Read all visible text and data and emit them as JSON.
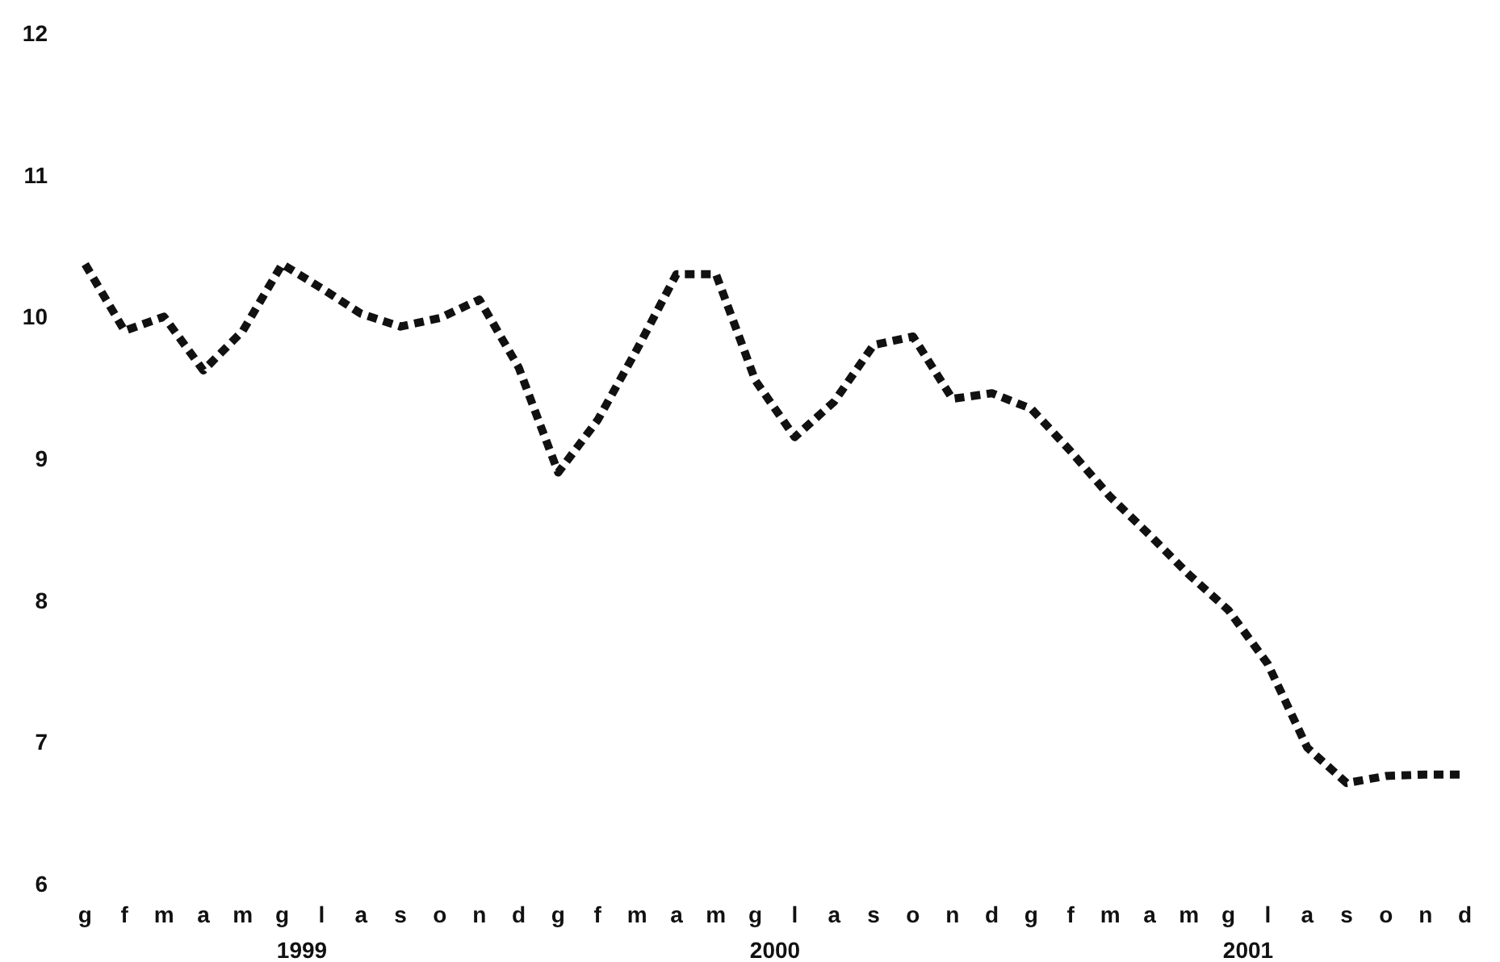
{
  "chart_data": {
    "type": "line",
    "categories": [
      "g",
      "f",
      "m",
      "a",
      "m",
      "g",
      "l",
      "a",
      "s",
      "o",
      "n",
      "d",
      "g",
      "f",
      "m",
      "a",
      "m",
      "g",
      "l",
      "a",
      "s",
      "o",
      "n",
      "d",
      "g",
      "f",
      "m",
      "a",
      "m",
      "g",
      "l",
      "a",
      "s",
      "o",
      "n",
      "d"
    ],
    "series": [
      {
        "color": "#111111",
        "values": [
          10.37,
          9.9,
          10.0,
          9.62,
          9.9,
          10.37,
          10.2,
          10.02,
          9.93,
          9.99,
          10.12,
          9.64,
          8.9,
          9.27,
          9.77,
          10.3,
          10.3,
          9.55,
          9.15,
          9.4,
          9.8,
          9.86,
          9.42,
          9.46,
          9.35,
          9.05,
          8.73,
          8.46,
          8.18,
          7.93,
          7.55,
          6.96,
          6.71,
          6.76,
          6.77,
          6.77
        ]
      }
    ],
    "annotations": [
      "1999",
      "2000",
      "2001"
    ],
    "ylim": [
      6,
      12
    ],
    "yticks": [
      6,
      7,
      8,
      9,
      10,
      11,
      12
    ],
    "line_style": "dashed"
  }
}
